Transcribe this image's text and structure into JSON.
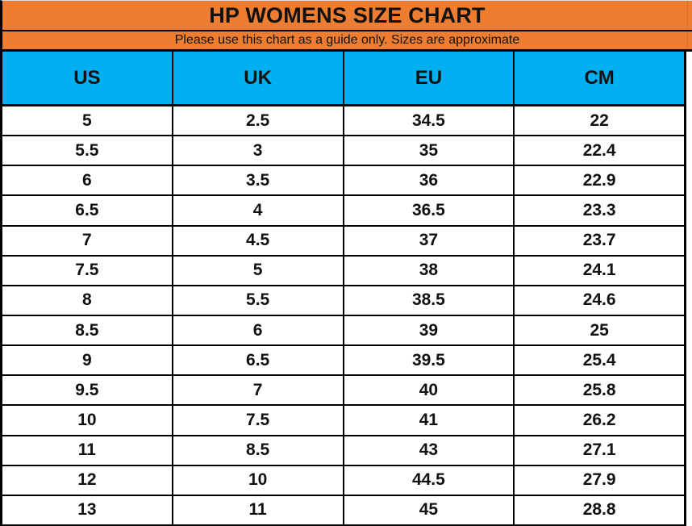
{
  "colors": {
    "banner_bg": "#ED7D31",
    "header_bg": "#00B0F0",
    "border": "#000000",
    "text": "#1a1a1a"
  },
  "chart_data": {
    "type": "table",
    "title": "HP WOMENS SIZE CHART",
    "subtitle": "Please use this chart as a guide only. Sizes are approximate",
    "columns": [
      "US",
      "UK",
      "EU",
      "CM"
    ],
    "rows": [
      [
        "5",
        "2.5",
        "34.5",
        "22"
      ],
      [
        "5.5",
        "3",
        "35",
        "22.4"
      ],
      [
        "6",
        "3.5",
        "36",
        "22.9"
      ],
      [
        "6.5",
        "4",
        "36.5",
        "23.3"
      ],
      [
        "7",
        "4.5",
        "37",
        "23.7"
      ],
      [
        "7.5",
        "5",
        "38",
        "24.1"
      ],
      [
        "8",
        "5.5",
        "38.5",
        "24.6"
      ],
      [
        "8.5",
        "6",
        "39",
        "25"
      ],
      [
        "9",
        "6.5",
        "39.5",
        "25.4"
      ],
      [
        "9.5",
        "7",
        "40",
        "25.8"
      ],
      [
        "10",
        "7.5",
        "41",
        "26.2"
      ],
      [
        "11",
        "8.5",
        "43",
        "27.1"
      ],
      [
        "12",
        "10",
        "44.5",
        "27.9"
      ],
      [
        "13",
        "11",
        "45",
        "28.8"
      ]
    ]
  }
}
